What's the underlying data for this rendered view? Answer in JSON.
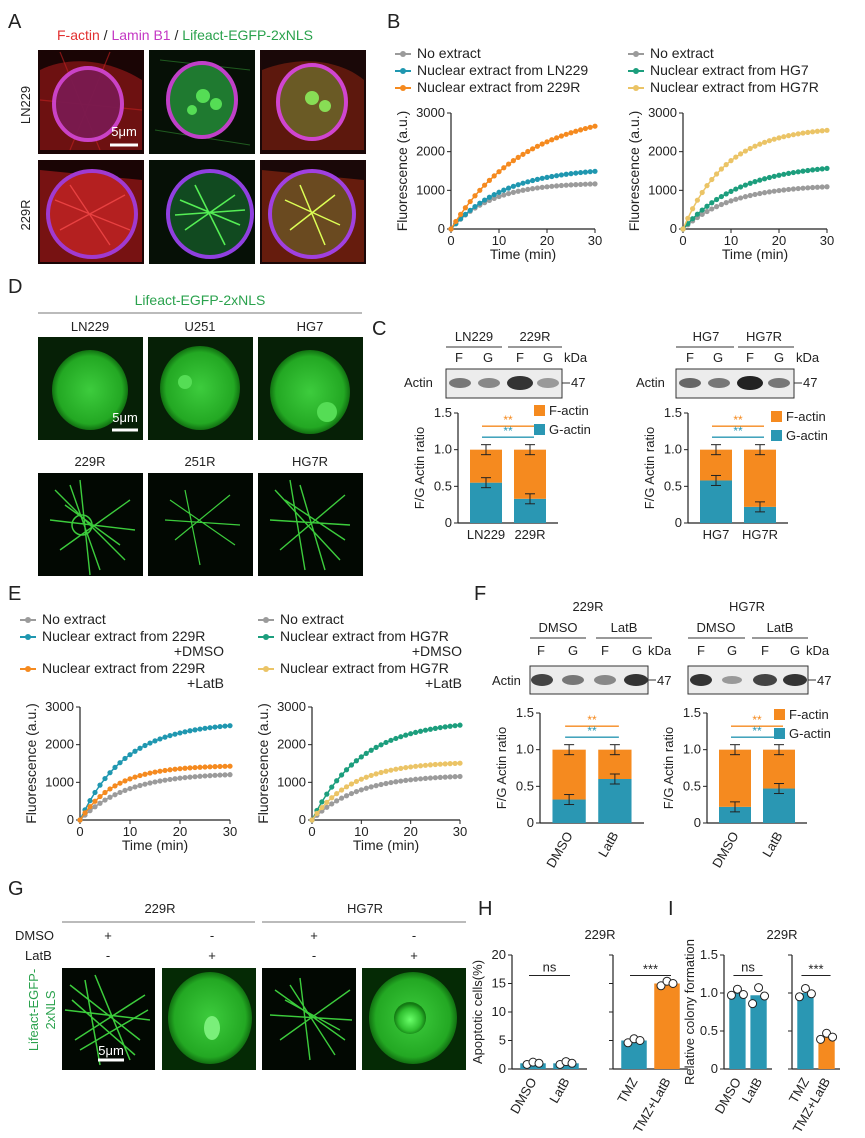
{
  "colors": {
    "gray": "#9b9b9b",
    "teal": "#1f97b0",
    "orange": "#f58a1f",
    "yellow": "#ebc466",
    "green": "#1c9e7d",
    "teal_bar": "#2a97b3",
    "red": "#e23030",
    "magenta": "#c438c4",
    "lifeact_green": "#2aa24d"
  },
  "panel_letters": [
    "A",
    "B",
    "C",
    "D",
    "E",
    "F",
    "G",
    "H",
    "I"
  ],
  "panelA": {
    "title_parts": [
      "F-actin",
      " / ",
      "Lamin B1",
      " / ",
      "Lifeact-EGFP-2xNLS"
    ],
    "rows": [
      "LN229",
      "229R"
    ],
    "scale": "5μm"
  },
  "panelD": {
    "title": "Lifeact-EGFP-2xNLS",
    "top_labels": [
      "LN229",
      "U251",
      "HG7"
    ],
    "bottom_labels": [
      "229R",
      "251R",
      "HG7R"
    ],
    "scale": "5μm"
  },
  "panelG": {
    "groups": [
      "229R",
      "HG7R"
    ],
    "row_labels": [
      "DMSO",
      "LatB"
    ],
    "dmso_signs": [
      "+",
      "-",
      "+",
      "-"
    ],
    "latb_signs": [
      "-",
      "+",
      "-",
      "+"
    ],
    "side_label": "Lifeact-EGFP-2xNLS",
    "side_label_lines": [
      "Lifeact-EGFP-",
      "2xNLS"
    ],
    "scale": "5μm"
  },
  "panelC": {
    "left": {
      "groups": [
        "LN229",
        "229R"
      ],
      "lanes": [
        "F",
        "G",
        "F",
        "G"
      ],
      "kda": "kDa",
      "band": "Actin",
      "mw": "47"
    },
    "right": {
      "groups": [
        "HG7",
        "HG7R"
      ],
      "lanes": [
        "F",
        "G",
        "F",
        "G"
      ],
      "kda": "kDa",
      "band": "Actin",
      "mw": "47"
    }
  },
  "panelF": {
    "left": {
      "group": "229R",
      "treatments": [
        "DMSO",
        "LatB"
      ],
      "lanes": [
        "F",
        "G",
        "F",
        "G"
      ],
      "kda": "kDa",
      "band": "Actin",
      "mw": "47"
    },
    "right": {
      "group": "HG7R",
      "treatments": [
        "DMSO",
        "LatB"
      ],
      "lanes": [
        "F",
        "G",
        "F",
        "G"
      ],
      "kda": "kDa",
      "band": "Actin",
      "mw": "47"
    }
  },
  "chart_data": [
    {
      "id": "B-left",
      "type": "line",
      "xlabel": "Time (min)",
      "ylabel": "Fluorescence (a.u.)",
      "xlim": [
        0,
        30
      ],
      "ylim": [
        0,
        3000
      ],
      "xticks": [
        0,
        10,
        20,
        30
      ],
      "yticks": [
        0,
        1000,
        2000,
        3000
      ],
      "legend": [
        "No extract",
        "Nuclear extract from LN229",
        "Nuclear extract from 229R"
      ],
      "series": [
        {
          "name": "No extract",
          "color": "gray",
          "plateau": 1200,
          "rate": 0.12
        },
        {
          "name": "Nuclear extract from LN229",
          "color": "teal",
          "plateau": 1600,
          "rate": 0.09
        },
        {
          "name": "Nuclear extract from 229R",
          "color": "orange",
          "plateau": 3100,
          "rate": 0.065
        }
      ]
    },
    {
      "id": "B-right",
      "type": "line",
      "xlabel": "Time (min)",
      "ylabel": "Fluorescence (a.u.)",
      "xlim": [
        0,
        30
      ],
      "ylim": [
        0,
        3000
      ],
      "xticks": [
        0,
        10,
        20,
        30
      ],
      "yticks": [
        0,
        1000,
        2000,
        3000
      ],
      "legend": [
        "No extract",
        "Nuclear extract from HG7",
        "Nuclear extract from HG7R"
      ],
      "series": [
        {
          "name": "No extract",
          "color": "gray",
          "plateau": 1150,
          "rate": 0.1
        },
        {
          "name": "Nuclear extract from HG7",
          "color": "green",
          "plateau": 1700,
          "rate": 0.085
        },
        {
          "name": "Nuclear extract from HG7R",
          "color": "yellow",
          "plateau": 2650,
          "rate": 0.11
        }
      ]
    },
    {
      "id": "E-left",
      "type": "line",
      "xlabel": "Time (min)",
      "ylabel": "Fluorescence (a.u.)",
      "xlim": [
        0,
        30
      ],
      "ylim": [
        0,
        3000
      ],
      "xticks": [
        0,
        10,
        20,
        30
      ],
      "yticks": [
        0,
        1000,
        2000,
        3000
      ],
      "legend": [
        "No extract",
        "Nuclear extract from 229R +DMSO",
        "Nuclear extract from 229R +LatB"
      ],
      "legend_lines": [
        [
          "No extract"
        ],
        [
          "Nuclear extract from 229R",
          "+DMSO"
        ],
        [
          "Nuclear extract from 229R",
          "+LatB"
        ]
      ],
      "series": [
        {
          "name": "No extract",
          "color": "gray",
          "plateau": 1250,
          "rate": 0.11
        },
        {
          "name": "Nuclear extract from 229R +DMSO",
          "color": "teal",
          "plateau": 2600,
          "rate": 0.11
        },
        {
          "name": "Nuclear extract from 229R +LatB",
          "color": "orange",
          "plateau": 1450,
          "rate": 0.14
        }
      ]
    },
    {
      "id": "E-right",
      "type": "line",
      "xlabel": "Time (min)",
      "ylabel": "Fluorescence (a.u.)",
      "xlim": [
        0,
        30
      ],
      "ylim": [
        0,
        3000
      ],
      "xticks": [
        0,
        10,
        20,
        30
      ],
      "yticks": [
        0,
        1000,
        2000,
        3000
      ],
      "legend": [
        "No extract",
        "Nuclear extract from HG7R +DMSO",
        "Nuclear extract from HG7R +LatB"
      ],
      "legend_lines": [
        [
          "No extract"
        ],
        [
          "Nuclear extract from HG7R",
          "+DMSO"
        ],
        [
          "Nuclear extract from HG7R",
          "+LatB"
        ]
      ],
      "series": [
        {
          "name": "No extract",
          "color": "gray",
          "plateau": 1200,
          "rate": 0.11
        },
        {
          "name": "Nuclear extract from HG7R +DMSO",
          "color": "green",
          "plateau": 2650,
          "rate": 0.1
        },
        {
          "name": "Nuclear extract from HG7R +LatB",
          "color": "yellow",
          "plateau": 1550,
          "rate": 0.12
        }
      ]
    },
    {
      "id": "C-left",
      "type": "bar",
      "stacked": true,
      "categories": [
        "LN229",
        "229R"
      ],
      "ylabel": "F/G Actin ratio",
      "ylim": [
        0,
        1.5
      ],
      "yticks": [
        "0",
        "0.5",
        "1.0",
        "1.5"
      ],
      "series": [
        {
          "name": "G-actin",
          "values": [
            0.55,
            0.33
          ]
        },
        {
          "name": "F-actin",
          "values": [
            0.45,
            0.67
          ]
        }
      ],
      "legend": [
        "F-actin",
        "G-actin"
      ],
      "annotations": [
        "**",
        "**"
      ]
    },
    {
      "id": "C-right",
      "type": "bar",
      "stacked": true,
      "categories": [
        "HG7",
        "HG7R"
      ],
      "ylabel": "F/G Actin ratio",
      "ylim": [
        0,
        1.5
      ],
      "yticks": [
        "0",
        "0.5",
        "1.0",
        "1.5"
      ],
      "series": [
        {
          "name": "G-actin",
          "values": [
            0.58,
            0.22
          ]
        },
        {
          "name": "F-actin",
          "values": [
            0.42,
            0.78
          ]
        }
      ],
      "legend": [
        "F-actin",
        "G-actin"
      ],
      "annotations": [
        "**",
        "**"
      ]
    },
    {
      "id": "F-left",
      "type": "bar",
      "stacked": true,
      "categories": [
        "DMSO",
        "LatB"
      ],
      "ylabel": "F/G Actin ratio",
      "ylim": [
        0,
        1.5
      ],
      "yticks": [
        "0",
        "0.5",
        "1.0",
        "1.5"
      ],
      "series": [
        {
          "name": "G-actin",
          "values": [
            0.32,
            0.6
          ]
        },
        {
          "name": "F-actin",
          "values": [
            0.68,
            0.4
          ]
        }
      ],
      "annotations": [
        "**",
        "**"
      ]
    },
    {
      "id": "F-right",
      "type": "bar",
      "stacked": true,
      "categories": [
        "DMSO",
        "LatB"
      ],
      "ylabel": "F/G Actin ratio",
      "ylim": [
        0,
        1.5
      ],
      "yticks": [
        "0",
        "0.5",
        "1.0",
        "1.5"
      ],
      "series": [
        {
          "name": "G-actin",
          "values": [
            0.22,
            0.47
          ]
        },
        {
          "name": "F-actin",
          "values": [
            0.78,
            0.53
          ]
        }
      ],
      "legend": [
        "F-actin",
        "G-actin"
      ],
      "annotations": [
        "**",
        "**"
      ]
    },
    {
      "id": "H",
      "type": "bar",
      "title": "229R",
      "ylabel": "Apoptotic cells(%)",
      "ylim": [
        0,
        20
      ],
      "yticks": [
        "0",
        "5",
        "10",
        "15",
        "20"
      ],
      "categories": [
        "DMSO",
        "LatB",
        "TMZ",
        "TMZ+LatB"
      ],
      "values": [
        1,
        1,
        5,
        15
      ],
      "annotations": [
        "ns",
        "***"
      ]
    },
    {
      "id": "I",
      "type": "bar",
      "title": "229R",
      "ylabel": "Relative colony formation",
      "ylim": [
        0,
        1.5
      ],
      "yticks": [
        "0",
        "0.5",
        "1.0",
        "1.5"
      ],
      "categories": [
        "DMSO",
        "LatB",
        "TMZ",
        "TMZ+LatB"
      ],
      "values": [
        1.0,
        0.97,
        1.0,
        0.43
      ],
      "annotations": [
        "ns",
        "***"
      ]
    }
  ]
}
